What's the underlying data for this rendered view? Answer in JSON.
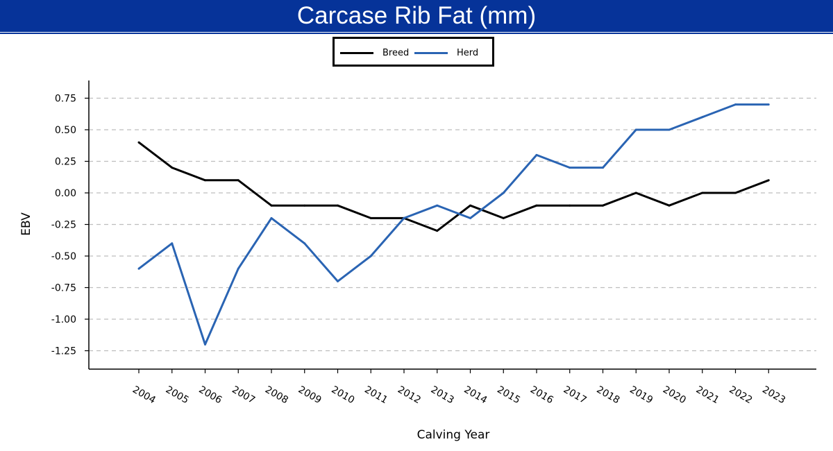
{
  "chart_data": {
    "type": "line",
    "title": "Carcase Rib Fat (mm)",
    "xlabel": "Calving Year",
    "ylabel": "EBV",
    "x": [
      "2004",
      "2005",
      "2006",
      "2007",
      "2008",
      "2009",
      "2010",
      "2011",
      "2012",
      "2013",
      "2014",
      "2015",
      "2016",
      "2017",
      "2018",
      "2019",
      "2020",
      "2021",
      "2022",
      "2023"
    ],
    "yticks": [
      "0.75",
      "0.50",
      "0.25",
      "0.00",
      "-0.25",
      "-0.50",
      "-0.75",
      "-1.00",
      "-1.25"
    ],
    "ylim": [
      -1.4,
      0.9
    ],
    "grid": "horizontal dashed",
    "legend_position": "top-center",
    "series": [
      {
        "name": "Breed",
        "color": "#000000",
        "values": [
          0.4,
          0.2,
          0.1,
          0.1,
          -0.1,
          -0.1,
          -0.1,
          -0.2,
          -0.2,
          -0.3,
          -0.1,
          -0.2,
          -0.1,
          -0.1,
          -0.1,
          0.0,
          -0.1,
          0.0,
          0.0,
          0.1
        ]
      },
      {
        "name": "Herd",
        "color": "#2a64b3",
        "values": [
          -0.6,
          -0.4,
          -1.2,
          -0.6,
          -0.2,
          -0.4,
          -0.7,
          -0.5,
          -0.2,
          -0.1,
          -0.2,
          0.0,
          0.3,
          0.2,
          0.2,
          0.5,
          0.5,
          0.6,
          0.7,
          0.7
        ]
      }
    ]
  }
}
